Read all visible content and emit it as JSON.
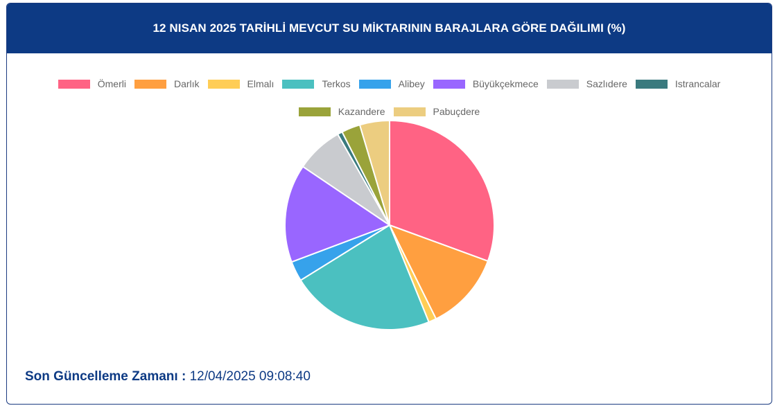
{
  "header": {
    "title": "12 NISAN 2025 TARİHLİ MEVCUT SU MİKTARININ BARAJLARA GÖRE DAĞILIMI (%)"
  },
  "chart_data": {
    "type": "pie",
    "title": "12 NISAN 2025 TARİHLİ MEVCUT SU MİKTARININ BARAJLARA GÖRE DAĞILIMI (%)",
    "legend": "top",
    "categories": [
      "Ömerli",
      "Darlık",
      "Elmalı",
      "Terkos",
      "Alibey",
      "Büyükçekmece",
      "Sazlıdere",
      "Istrancalar",
      "Kazandere",
      "Pabuçdere"
    ],
    "values": [
      30.6,
      12.1,
      1.2,
      22.3,
      3.1,
      15.2,
      7.3,
      0.75,
      2.9,
      4.6
    ],
    "colors": [
      "#ff6384",
      "#ff9f40",
      "#ffcd56",
      "#4bc0c0",
      "#36a2eb",
      "#9966ff",
      "#c9cbcf",
      "#3a7a7e",
      "#9aa33a",
      "#eccd80"
    ]
  },
  "footer": {
    "label": "Son Güncelleme Zamanı :",
    "value": "12/04/2025 09:08:40"
  }
}
